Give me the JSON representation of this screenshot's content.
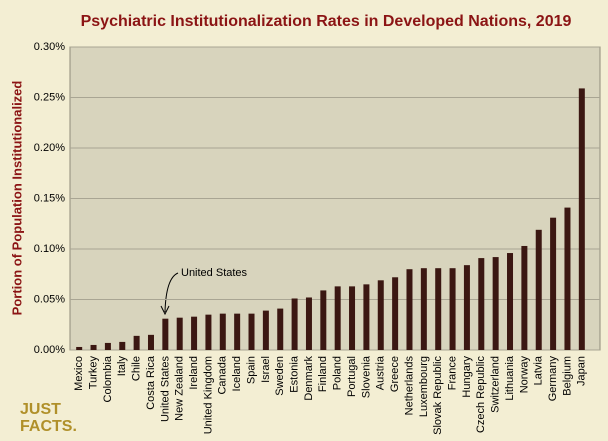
{
  "chart_data": {
    "type": "bar",
    "title": "Psychiatric Institutionalization Rates in Developed Nations, 2019",
    "y_label": "Portion of Population Institutionalized",
    "annotation": "United States",
    "categories": [
      "Mexico",
      "Turkey",
      "Colombia",
      "Italy",
      "Chile",
      "Costa Rica",
      "United States",
      "New Zealand",
      "Ireland",
      "United Kingdom",
      "Canada",
      "Iceland",
      "Spain",
      "Israel",
      "Sweden",
      "Estonia",
      "Denmark",
      "Finland",
      "Poland",
      "Portugal",
      "Slovenia",
      "Austria",
      "Greece",
      "Netherlands",
      "Luxembourg",
      "Slovak Republic",
      "France",
      "Hungary",
      "Czech Republic",
      "Switzerland",
      "Lithuania",
      "Norway",
      "Latvia",
      "Germany",
      "Belgium",
      "Japan"
    ],
    "values": [
      0.003,
      0.005,
      0.007,
      0.008,
      0.014,
      0.015,
      0.031,
      0.032,
      0.033,
      0.035,
      0.036,
      0.036,
      0.036,
      0.039,
      0.041,
      0.051,
      0.052,
      0.059,
      0.063,
      0.063,
      0.065,
      0.069,
      0.072,
      0.08,
      0.081,
      0.081,
      0.081,
      0.084,
      0.091,
      0.092,
      0.096,
      0.103,
      0.119,
      0.131,
      0.141,
      0.259
    ],
    "color": "#3b1712",
    "ylim": [
      0,
      0.3
    ],
    "yticks": [
      {
        "value": 0,
        "label": "0.00%"
      },
      {
        "value": 0.05,
        "label": "0.05%"
      },
      {
        "value": 0.1,
        "label": "0.10%"
      },
      {
        "value": 0.15,
        "label": "0.15%"
      },
      {
        "value": 0.2,
        "label": "0.20%"
      },
      {
        "value": 0.25,
        "label": "0.25%"
      },
      {
        "value": 0.3,
        "label": "0.30%"
      }
    ],
    "grid": true
  },
  "logo": {
    "line1": "JUST",
    "line2": "FACTS."
  }
}
